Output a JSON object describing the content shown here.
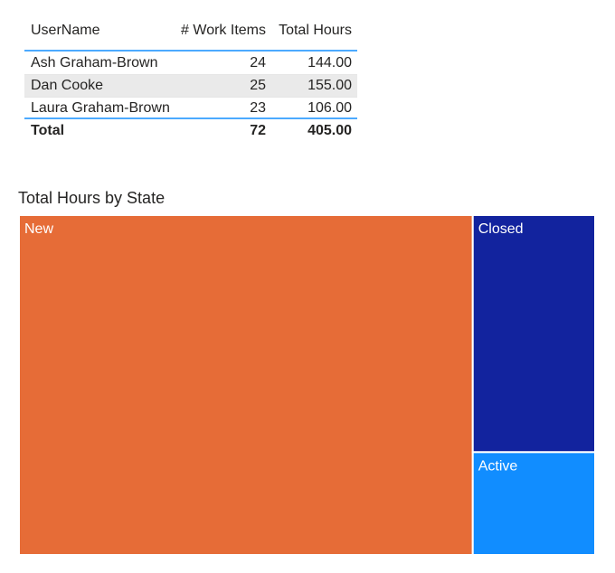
{
  "table": {
    "columns": [
      "UserName",
      "# Work Items",
      "Total Hours"
    ],
    "rows": [
      [
        "Ash Graham-Brown",
        "24",
        "144.00"
      ],
      [
        "Dan Cooke",
        "25",
        "155.00"
      ],
      [
        "Laura Graham-Brown",
        "23",
        "106.00"
      ]
    ],
    "total": [
      "Total",
      "72",
      "405.00"
    ]
  },
  "chart_data": {
    "type": "treemap",
    "title": "Total Hours by State",
    "categories": [
      "New",
      "Closed",
      "Active"
    ],
    "values": [
      319,
      60,
      26
    ],
    "colors": [
      "#E66C37",
      "#12239E",
      "#118DFF"
    ]
  }
}
